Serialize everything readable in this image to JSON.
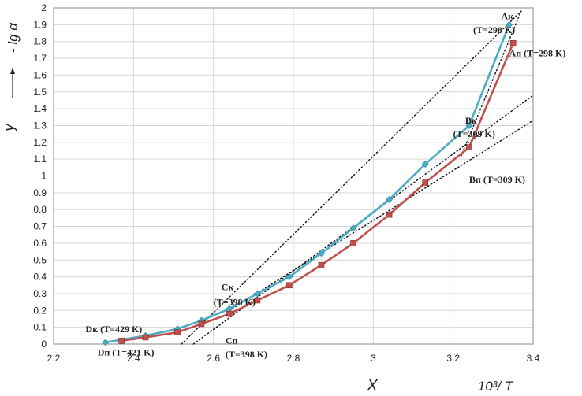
{
  "chart_data": {
    "type": "line",
    "xlabel": "X",
    "xlabel_formula": "10³/ T",
    "ylabel": "y",
    "ylabel_formula": "- lg α",
    "xlim": [
      2.2,
      3.4
    ],
    "ylim": [
      0,
      2
    ],
    "x_ticks": [
      "2.2",
      "2.4",
      "2.6",
      "2.8",
      "3",
      "3.2",
      "3.4"
    ],
    "y_ticks": [
      "0",
      "0.1",
      "0.2",
      "0.3",
      "0.4",
      "0.5",
      "0.6",
      "0.7",
      "0.8",
      "0.9",
      "1",
      "1.1",
      "1.2",
      "1.3",
      "1.4",
      "1.5",
      "1.6",
      "1.7",
      "1.8",
      "1.9",
      "2"
    ],
    "grid": true,
    "series": [
      {
        "color": "#4BACC6",
        "marker": "diamond",
        "x": [
          2.33,
          2.43,
          2.51,
          2.57,
          2.64,
          2.71,
          2.79,
          2.87,
          2.95,
          3.04,
          3.13,
          3.24,
          3.34
        ],
        "y": [
          0.01,
          0.05,
          0.09,
          0.14,
          0.21,
          0.3,
          0.4,
          0.54,
          0.69,
          0.86,
          1.07,
          1.3,
          1.9
        ]
      },
      {
        "color": "#C0504D",
        "marker": "square",
        "x": [
          2.37,
          2.43,
          2.51,
          2.57,
          2.64,
          2.71,
          2.79,
          2.87,
          2.95,
          3.04,
          3.13,
          3.24,
          3.35
        ],
        "y": [
          0.02,
          0.04,
          0.07,
          0.12,
          0.18,
          0.26,
          0.35,
          0.47,
          0.6,
          0.77,
          0.96,
          1.17,
          1.79
        ]
      }
    ],
    "fit_lines": [
      {
        "style": "dotted",
        "x": [
          2.52,
          3.37
        ],
        "y": [
          0,
          1.98
        ]
      },
      {
        "style": "dotted",
        "x": [
          2.55,
          3.4
        ],
        "y": [
          0,
          1.48
        ]
      },
      {
        "style": "dotted",
        "x": [
          2.64,
          3.4
        ],
        "y": [
          0.2,
          1.33
        ]
      },
      {
        "style": "dotted",
        "x": [
          3.22,
          3.37
        ],
        "y": [
          1.12,
          1.98
        ]
      }
    ],
    "annotations": [
      {
        "text": "Aк",
        "x": 3.32,
        "y": 1.95
      },
      {
        "text": "(T=298 K)",
        "x": 3.25,
        "y": 1.87
      },
      {
        "text": "Aп (T=298 K)",
        "x": 3.34,
        "y": 1.73
      },
      {
        "text": "Bк",
        "x": 3.23,
        "y": 1.33
      },
      {
        "text": "(T=309 K)",
        "x": 3.2,
        "y": 1.25
      },
      {
        "text": "Bп (T=309 K)",
        "x": 3.24,
        "y": 0.98
      },
      {
        "text": "Cк",
        "x": 2.62,
        "y": 0.34
      },
      {
        "text": "(T=398 K)",
        "x": 2.6,
        "y": 0.25
      },
      {
        "text": "Cп",
        "x": 2.63,
        "y": 0.02
      },
      {
        "text": "(T=398 K)",
        "x": 2.63,
        "y": -0.06
      },
      {
        "text": "Dк (T=429 K)",
        "x": 2.28,
        "y": 0.09
      },
      {
        "text": "Dп (T=421 K)",
        "x": 2.31,
        "y": -0.05
      }
    ]
  }
}
